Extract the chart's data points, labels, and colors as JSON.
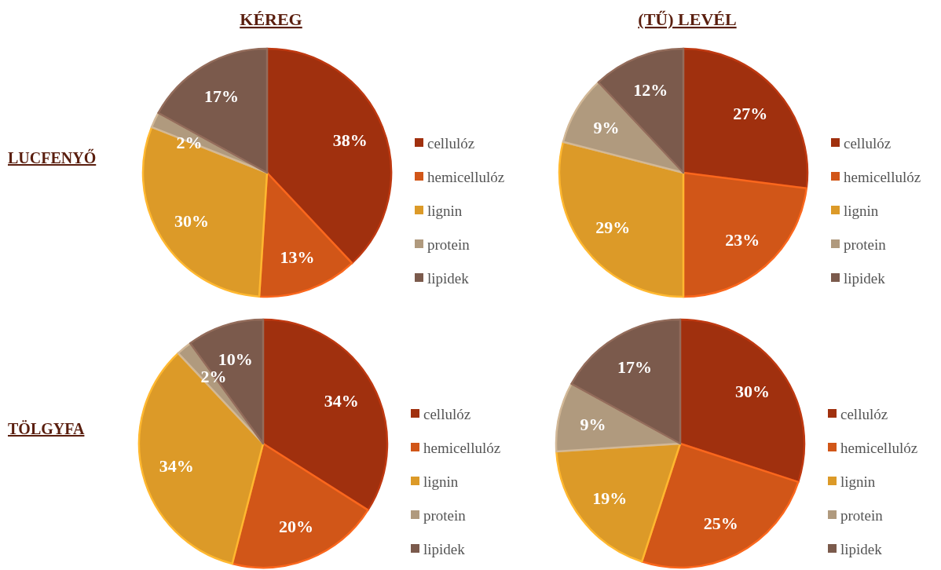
{
  "chart_data": [
    {
      "type": "pie",
      "title": "KÉREG",
      "ylabel": "LUCFENYŐ",
      "categories": [
        "cellulóz",
        "hemicellulóz",
        "lignin",
        "protein",
        "lipidek"
      ],
      "values": [
        38,
        13,
        30,
        2,
        17
      ],
      "value_labels": [
        "38%",
        "13%",
        "30%",
        "2%",
        "17%"
      ],
      "colors": [
        "#a0300e",
        "#d15618",
        "#dc9a28",
        "#b09a7e",
        "#7b5a4c"
      ],
      "legend": "right"
    },
    {
      "type": "pie",
      "title": "(TŰ) LEVÉL",
      "categories": [
        "cellulóz",
        "hemicellulóz",
        "lignin",
        "protein",
        "lipidek"
      ],
      "values": [
        27,
        23,
        29,
        9,
        12
      ],
      "value_labels": [
        "27%",
        "23%",
        "29%",
        "9%",
        "12%"
      ],
      "colors": [
        "#a0300e",
        "#d15618",
        "#dc9a28",
        "#b09a7e",
        "#7b5a4c"
      ],
      "legend": "right"
    },
    {
      "type": "pie",
      "ylabel": "TÖLGYFA",
      "categories": [
        "cellulóz",
        "hemicellulóz",
        "lignin",
        "protein",
        "lipidek"
      ],
      "values": [
        34,
        20,
        34,
        2,
        10
      ],
      "value_labels": [
        "34%",
        "20%",
        "34%",
        "2%",
        "10%"
      ],
      "colors": [
        "#a0300e",
        "#d15618",
        "#dc9a28",
        "#b09a7e",
        "#7b5a4c"
      ],
      "legend": "right"
    },
    {
      "type": "pie",
      "categories": [
        "cellulóz",
        "hemicellulóz",
        "lignin",
        "protein",
        "lipidek"
      ],
      "values": [
        30,
        25,
        19,
        9,
        17
      ],
      "value_labels": [
        "30%",
        "25%",
        "19%",
        "9%",
        "17%"
      ],
      "colors": [
        "#a0300e",
        "#d15618",
        "#dc9a28",
        "#b09a7e",
        "#7b5a4c"
      ],
      "legend": "right"
    }
  ]
}
